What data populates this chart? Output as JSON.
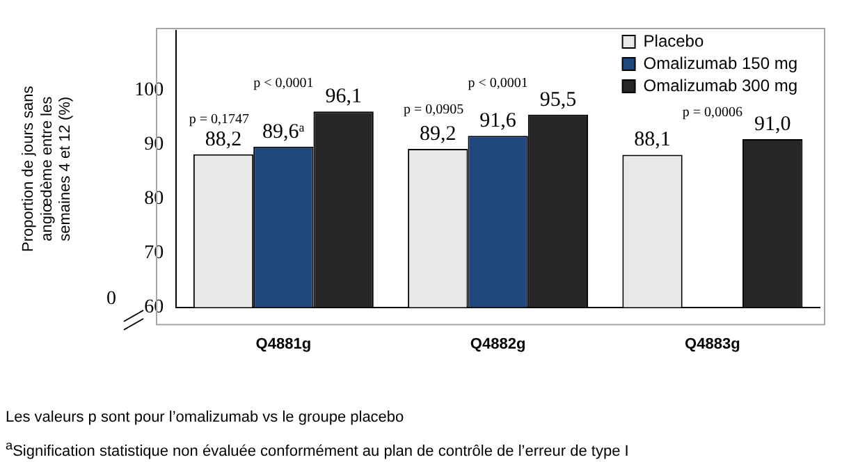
{
  "chart_data": {
    "type": "bar",
    "ylabel": "Proportion de jours sans angiœdème entre les semaines 4 et 12 (%)",
    "categories": [
      "Q4881g",
      "Q4882g",
      "Q4883g"
    ],
    "series": [
      {
        "name": "Placebo",
        "color": "#e8e8e8",
        "values": [
          88.2,
          89.2,
          88.1
        ],
        "value_labels": [
          "88,2",
          "89,2",
          "88,1"
        ]
      },
      {
        "name": "Omalizumab 150 mg",
        "color": "#1f497d",
        "values": [
          89.6,
          91.6,
          null
        ],
        "value_labels": [
          "89,6$^{a}$",
          "91,6",
          null
        ]
      },
      {
        "name": "Omalizumab 300 mg",
        "color": "#262626",
        "values": [
          96.1,
          95.5,
          91.0
        ],
        "value_labels": [
          "96,1",
          "95,5",
          "91,0"
        ]
      }
    ],
    "ylim": [
      60,
      111
    ],
    "yticks": [
      60,
      70,
      80,
      90,
      100
    ],
    "grid": false,
    "legend": "top right",
    "annotations": [
      "p = 0,1747",
      "p < 0,0001",
      "p = 0,0905",
      "p < 0,0001",
      "p = 0,0006",
      "0",
      "Les valeurs p sont pour l’omalizumab vs le groupe placebo",
      "$^{a}$Signification statistique non évaluée conformément au plan de contrôle de l’erreur de type I"
    ]
  }
}
